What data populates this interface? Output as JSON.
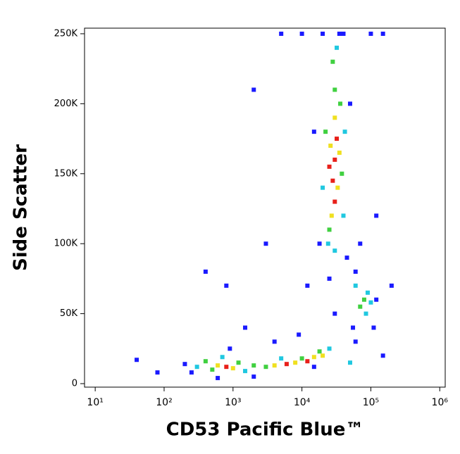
{
  "chart_data": {
    "type": "scatter",
    "x_label": "CD53 Pacific Blue™",
    "y_label": "Side Scatter",
    "xscale": "log",
    "xlim": [
      7,
      1200000
    ],
    "xticks": [
      {
        "value": 10,
        "label": "10¹"
      },
      {
        "value": 100,
        "label": "10²"
      },
      {
        "value": 1000,
        "label": "10³"
      },
      {
        "value": 10000,
        "label": "10⁴"
      },
      {
        "value": 100000,
        "label": "10⁵"
      },
      {
        "value": 1000000,
        "label": "10⁶"
      }
    ],
    "ylim": [
      -2500,
      254000
    ],
    "yticks": [
      0,
      {
        "value": 50000,
        "label": "50K"
      },
      {
        "value": 100000,
        "label": "100K"
      },
      {
        "value": 150000,
        "label": "150K"
      },
      {
        "value": 200000,
        "label": "200K"
      },
      {
        "value": 250000,
        "label": "250K"
      }
    ],
    "series": [
      {
        "color": "#1a1aff",
        "x": [
          250,
          200,
          900,
          2000,
          15000,
          45000,
          18000,
          50000,
          15000,
          35000,
          20000,
          60000,
          120000,
          110000,
          55000,
          9000,
          4000,
          1500,
          800,
          3000,
          400,
          2000,
          70000,
          120000,
          40000,
          100000,
          5000,
          60000,
          150000,
          30000,
          10000,
          150000,
          600,
          12000,
          25000,
          40,
          80,
          200000
        ],
        "y": [
          8000,
          14000,
          25000,
          5000,
          12000,
          90000,
          100000,
          200000,
          180000,
          250000,
          250000,
          80000,
          60000,
          40000,
          40000,
          35000,
          30000,
          40000,
          70000,
          100000,
          80000,
          210000,
          100000,
          120000,
          250000,
          250000,
          250000,
          30000,
          20000,
          50000,
          250000,
          250000,
          4000,
          70000,
          75000,
          17000,
          8000,
          70000
        ]
      },
      {
        "color": "#20c8e0",
        "x": [
          32000,
          24000,
          40000,
          20000,
          42000,
          30000,
          300,
          700,
          1500,
          5000,
          25000,
          90000,
          60000,
          85000,
          100000,
          50000
        ],
        "y": [
          240000,
          100000,
          120000,
          140000,
          180000,
          95000,
          12000,
          19000,
          9000,
          18000,
          25000,
          65000,
          70000,
          50000,
          58000,
          15000
        ]
      },
      {
        "color": "#40d040",
        "x": [
          30000,
          25000,
          38000,
          22000,
          36000,
          28000,
          3000,
          2000,
          500,
          400,
          1200,
          18000,
          10000,
          80000,
          70000
        ],
        "y": [
          210000,
          110000,
          150000,
          180000,
          200000,
          230000,
          12000,
          13000,
          10000,
          16000,
          15000,
          23000,
          18000,
          60000,
          55000
        ]
      },
      {
        "color": "#f0e020",
        "x": [
          30000,
          27000,
          33000,
          35000,
          26000,
          15000,
          8000,
          4000,
          600,
          1000,
          20000
        ],
        "y": [
          190000,
          120000,
          140000,
          165000,
          170000,
          19000,
          15000,
          13000,
          13000,
          11000,
          20000
        ]
      },
      {
        "color": "#e8201a",
        "x": [
          30000,
          28000,
          32000,
          30000,
          12000,
          6000,
          800,
          25000
        ],
        "y": [
          160000,
          145000,
          175000,
          130000,
          16000,
          14000,
          12000,
          155000
        ]
      }
    ]
  }
}
